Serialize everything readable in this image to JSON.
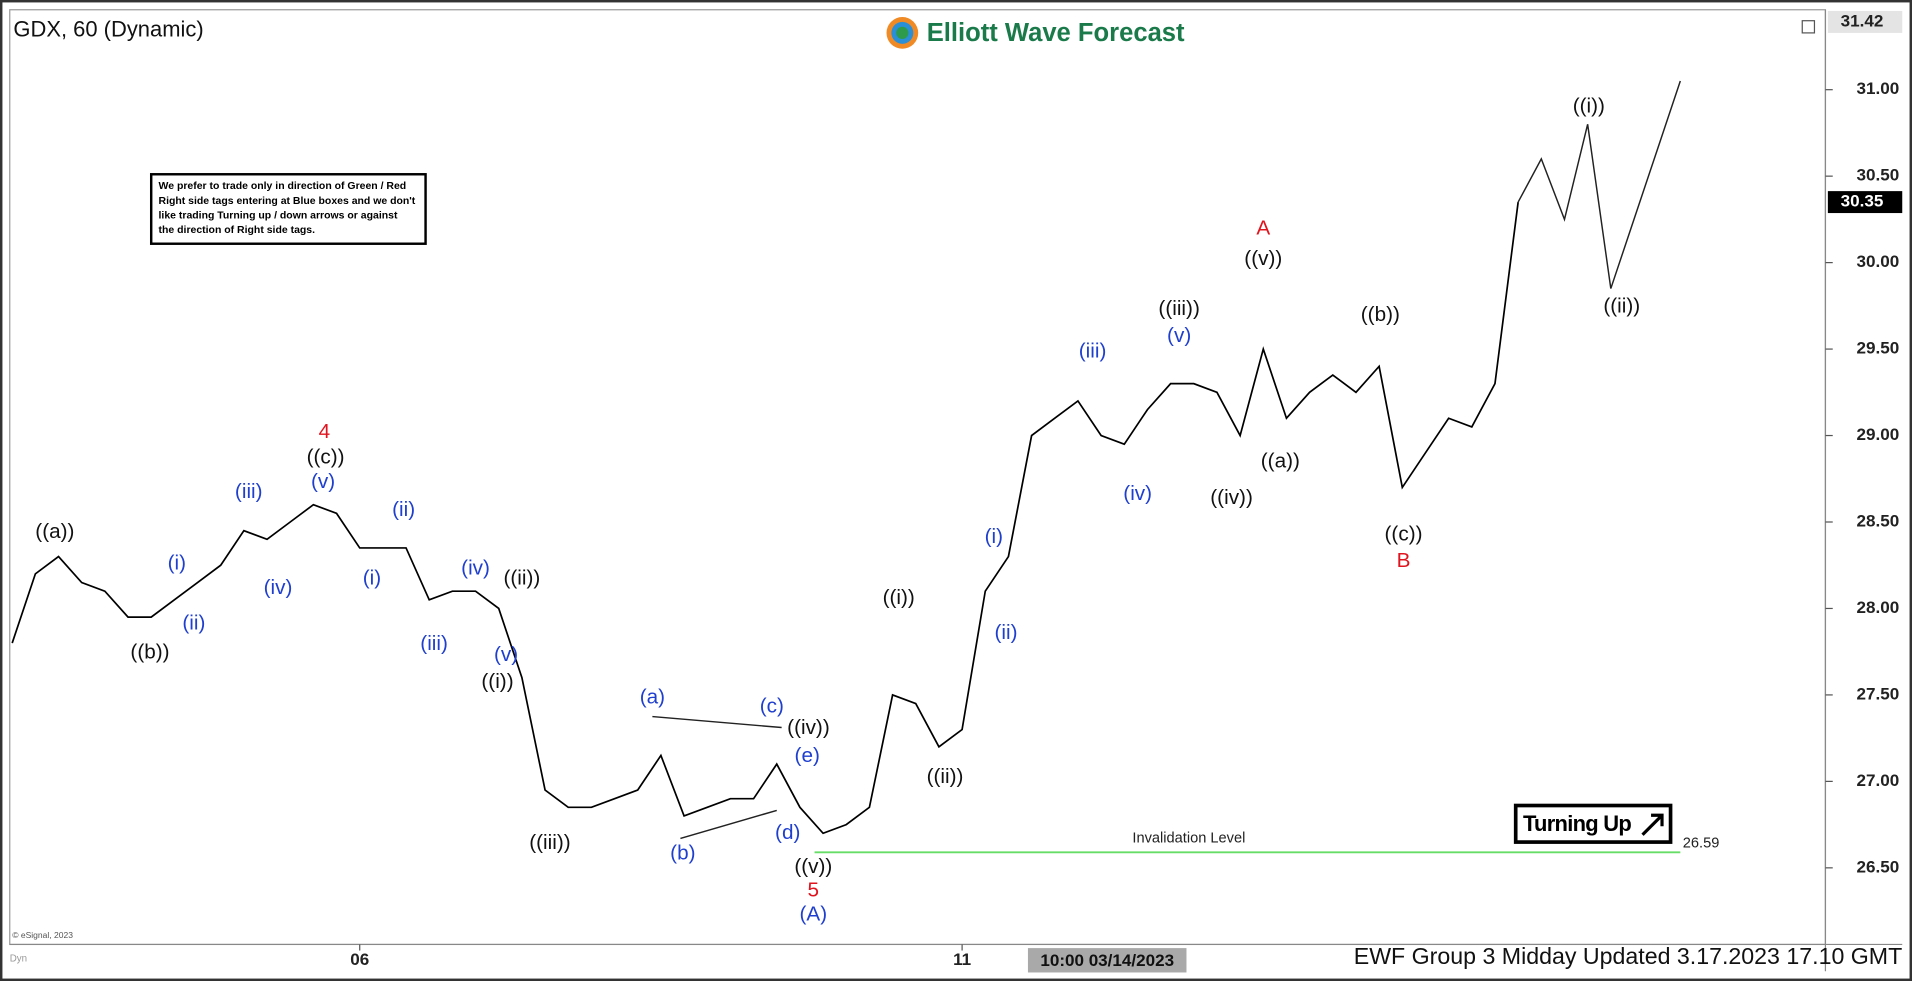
{
  "symbol_title": "GDX, 60 (Dynamic)",
  "brand": "Elliott Wave Forecast",
  "note_lines": [
    "We prefer to trade only in direction of Green / Red",
    "Right side tags entering at Blue boxes and we don't",
    "like trading Turning up / down arrows or against",
    "the direction of Right side tags."
  ],
  "signal": "Turning Up",
  "copyright": "© eSignal, 2023",
  "mode_tag": "Dyn",
  "cursor_time": "10:00 03/14/2023",
  "footer": "EWF Group 3 Midday Updated 3.17.2023 17.10 GMT",
  "chart_data": {
    "type": "line",
    "categories": [
      null,
      null,
      null,
      null,
      null,
      null,
      null,
      null,
      null,
      null,
      null,
      null,
      null,
      null,
      null,
      "06",
      null,
      null,
      null,
      null,
      null,
      null,
      null,
      null,
      null,
      null,
      null,
      null,
      null,
      null,
      null,
      null,
      null,
      null,
      null,
      null,
      null,
      null,
      null,
      null,
      null,
      "11",
      null,
      null,
      null,
      null,
      null,
      null,
      null,
      null,
      null,
      null,
      null,
      null,
      null,
      null,
      null,
      null,
      null,
      null,
      null,
      null,
      null,
      null,
      null,
      null,
      null,
      null,
      null,
      null,
      null,
      null,
      null
    ],
    "series": [
      {
        "color": "#000000",
        "values": [
          27.8,
          28.2,
          28.3,
          28.15,
          28.1,
          27.95,
          27.95,
          28.05,
          28.15,
          28.25,
          28.45,
          28.4,
          28.5,
          28.6,
          28.55,
          28.35,
          28.35,
          28.35,
          28.05,
          28.1,
          28.1,
          28.0,
          27.6,
          26.95,
          26.85,
          26.85,
          26.9,
          26.95,
          27.15,
          26.8,
          26.85,
          26.9,
          26.9,
          27.1,
          26.85,
          26.7,
          26.75,
          26.85,
          27.5,
          27.45,
          27.2,
          27.3,
          28.1,
          28.3,
          29.0,
          29.1,
          29.2,
          29.0,
          28.95,
          29.15,
          29.3,
          29.3,
          29.25,
          29.0,
          29.5,
          29.1,
          29.25,
          29.35,
          29.25,
          29.4,
          28.7,
          28.9,
          29.1,
          29.05,
          29.3,
          30.35,
          null,
          null,
          null,
          null,
          null,
          null,
          null
        ]
      },
      {
        "color": "#222222",
        "values": [
          null,
          null,
          null,
          null,
          null,
          null,
          null,
          null,
          null,
          null,
          null,
          null,
          null,
          null,
          null,
          null,
          null,
          null,
          null,
          null,
          null,
          null,
          null,
          null,
          null,
          null,
          null,
          null,
          null,
          null,
          null,
          null,
          null,
          null,
          null,
          null,
          null,
          null,
          null,
          null,
          null,
          null,
          null,
          null,
          null,
          null,
          null,
          null,
          null,
          null,
          null,
          null,
          null,
          null,
          null,
          null,
          null,
          null,
          null,
          null,
          null,
          null,
          null,
          null,
          null,
          30.35,
          30.6,
          30.25,
          30.8,
          29.85,
          30.25,
          30.65,
          31.05
        ]
      }
    ],
    "ylim": [
      26.05,
      31.42
    ],
    "yticks": [
      {
        "value": 26.5,
        "label": "26.50"
      },
      {
        "value": 27,
        "label": "27.00"
      },
      {
        "value": 27.5,
        "label": "27.50"
      },
      {
        "value": 28,
        "label": "28.00"
      },
      {
        "value": 28.5,
        "label": "28.50"
      },
      {
        "value": 29,
        "label": "29.00"
      },
      {
        "value": 29.5,
        "label": "29.50"
      },
      {
        "value": 30,
        "label": "30.00"
      },
      {
        "value": 30.5,
        "label": "30.50"
      },
      {
        "value": 31,
        "label": "31.00"
      }
    ],
    "last_price": 30.35,
    "invalidation": {
      "label": "Invalidation Level",
      "value": 26.59,
      "color": "#66dd66"
    },
    "wave_labels": [
      {
        "text": "((a))",
        "color": "#111111"
      },
      {
        "text": "((b))",
        "color": "#111111"
      },
      {
        "text": "((c))",
        "color": "#111111"
      },
      {
        "text": "((ii))",
        "color": "#111111"
      },
      {
        "text": "((i))",
        "color": "#111111"
      },
      {
        "text": "((iii))",
        "color": "#111111"
      },
      {
        "text": "((iv))",
        "color": "#111111"
      },
      {
        "text": "((v))",
        "color": "#111111"
      },
      {
        "text": "((i))",
        "color": "#111111"
      },
      {
        "text": "((ii))",
        "color": "#111111"
      },
      {
        "text": "((iii))",
        "color": "#111111"
      },
      {
        "text": "((iv))",
        "color": "#111111"
      },
      {
        "text": "((v))",
        "color": "#111111"
      },
      {
        "text": "((a))",
        "color": "#111111"
      },
      {
        "text": "((b))",
        "color": "#111111"
      },
      {
        "text": "((c))",
        "color": "#111111"
      },
      {
        "text": "((i))",
        "color": "#111111"
      },
      {
        "text": "((ii))",
        "color": "#111111"
      },
      {
        "text": "4",
        "color": "#e0141e"
      },
      {
        "text": "5",
        "color": "#e0141e"
      },
      {
        "text": "A",
        "color": "#e0141e"
      },
      {
        "text": "B",
        "color": "#e0141e"
      },
      {
        "text": "(iii)",
        "color": "#1f3fcf"
      },
      {
        "text": "(v)",
        "color": "#1f3fcf"
      },
      {
        "text": "(i)",
        "color": "#1f3fcf"
      },
      {
        "text": "(ii)",
        "color": "#1f3fcf"
      },
      {
        "text": "(iv)",
        "color": "#1f3fcf"
      },
      {
        "text": "(ii)",
        "color": "#1f3fcf"
      },
      {
        "text": "(i)",
        "color": "#1f3fcf"
      },
      {
        "text": "(iv)",
        "color": "#1f3fcf"
      },
      {
        "text": "(iii)",
        "color": "#1f3fcf"
      },
      {
        "text": "(v)",
        "color": "#1f3fcf"
      },
      {
        "text": "(a)",
        "color": "#1f3fcf"
      },
      {
        "text": "(b)",
        "color": "#1f3fcf"
      },
      {
        "text": "(c)",
        "color": "#1f3fcf"
      },
      {
        "text": "(d)",
        "color": "#1f3fcf"
      },
      {
        "text": "(e)",
        "color": "#1f3fcf"
      },
      {
        "text": "(A)",
        "color": "#1f3fcf"
      },
      {
        "text": "(i)",
        "color": "#1f3fcf"
      },
      {
        "text": "(ii)",
        "color": "#1f3fcf"
      },
      {
        "text": "(iii)",
        "color": "#1f3fcf"
      },
      {
        "text": "(iv)",
        "color": "#1f3fcf"
      },
      {
        "text": "(v)",
        "color": "#1f3fcf"
      }
    ]
  }
}
